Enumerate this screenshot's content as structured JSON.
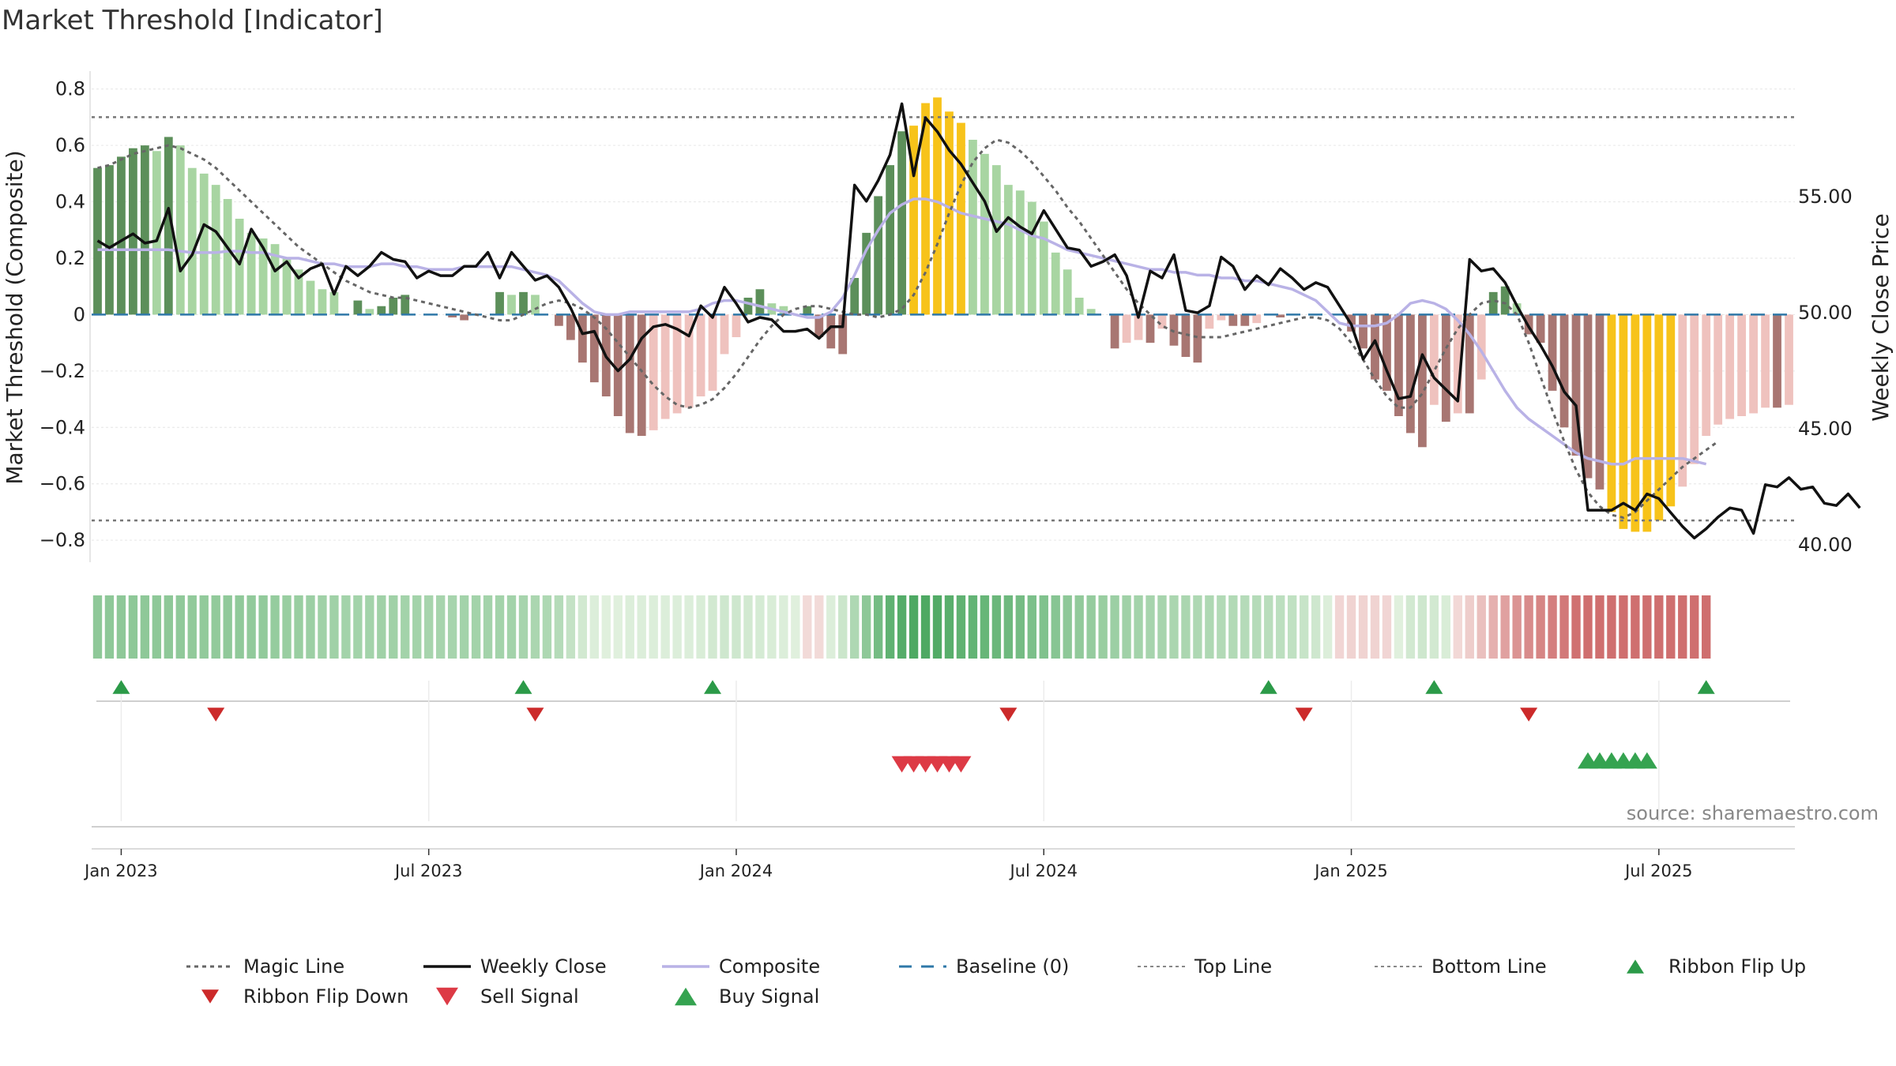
{
  "title": "Market Threshold [Indicator]",
  "source": "source: sharemaestro.com",
  "chart_data": {
    "type": "bar",
    "title": "Market Threshold [Indicator]",
    "ylabel_left": "Market Threshold (Composite)",
    "ylabel_right": "Weekly Close Price",
    "ylim_left": [
      -0.85,
      0.83
    ],
    "ylim_right": [
      39.6,
      60.0
    ],
    "y_ticks_left": [
      0.8,
      0.6,
      0.4,
      0.2,
      0,
      -0.2,
      -0.4,
      -0.6,
      -0.8
    ],
    "y_tick_labels_left": [
      "0.8",
      "0.6",
      "0.4",
      "0.2",
      "0",
      "−0.2",
      "−0.4",
      "−0.6",
      "−0.8"
    ],
    "y_ticks_right": [
      55,
      50,
      45,
      40
    ],
    "y_tick_labels_right": [
      "55.00",
      "50.00",
      "45.00",
      "40.00"
    ],
    "x_tick_labels": [
      "Jan 2023",
      "Jul 2023",
      "Jan 2024",
      "Jul 2024",
      "Jan 2025",
      "Jul 2025"
    ],
    "x_tick_weeks": [
      2,
      28,
      54,
      80,
      106,
      132
    ],
    "top_line": 0.7,
    "bottom_line": -0.73,
    "baseline": 0,
    "series": [
      {
        "name": "Magic Line",
        "color": "#6b6b6b",
        "style": "dotted",
        "values": [
          0.52,
          0.53,
          0.55,
          0.57,
          0.58,
          0.59,
          0.6,
          0.59,
          0.57,
          0.55,
          0.52,
          0.48,
          0.44,
          0.4,
          0.36,
          0.32,
          0.28,
          0.24,
          0.21,
          0.18,
          0.15,
          0.12,
          0.1,
          0.08,
          0.07,
          0.06,
          0.06,
          0.05,
          0.04,
          0.03,
          0.02,
          0.01,
          0.0,
          -0.01,
          -0.02,
          -0.02,
          0.0,
          0.02,
          0.04,
          0.05,
          0.04,
          0.02,
          -0.01,
          -0.05,
          -0.1,
          -0.15,
          -0.2,
          -0.25,
          -0.29,
          -0.32,
          -0.33,
          -0.32,
          -0.3,
          -0.26,
          -0.21,
          -0.15,
          -0.09,
          -0.04,
          0.0,
          0.02,
          0.03,
          0.03,
          0.02,
          0.01,
          0.0,
          0.0,
          -0.01,
          0.0,
          0.02,
          0.07,
          0.15,
          0.25,
          0.36,
          0.46,
          0.54,
          0.59,
          0.62,
          0.61,
          0.58,
          0.54,
          0.49,
          0.44,
          0.38,
          0.33,
          0.27,
          0.21,
          0.15,
          0.09,
          0.04,
          0.0,
          -0.04,
          -0.06,
          -0.07,
          -0.08,
          -0.08,
          -0.08,
          -0.07,
          -0.06,
          -0.05,
          -0.04,
          -0.03,
          -0.02,
          -0.01,
          -0.01,
          -0.02,
          -0.05,
          -0.1,
          -0.16,
          -0.23,
          -0.29,
          -0.33,
          -0.33,
          -0.28,
          -0.2,
          -0.12,
          -0.05,
          0.0,
          0.04,
          0.05,
          0.04,
          0.0,
          -0.1,
          -0.22,
          -0.34,
          -0.45,
          -0.55,
          -0.63,
          -0.68,
          -0.71,
          -0.72,
          -0.7,
          -0.66,
          -0.62,
          -0.58,
          -0.54,
          -0.51,
          -0.48,
          -0.45
        ]
      },
      {
        "name": "Weekly Close",
        "color": "#111111",
        "style": "solid",
        "values": [
          53.1,
          52.8,
          53.1,
          53.4,
          53.0,
          53.1,
          54.5,
          51.8,
          52.5,
          53.8,
          53.5,
          52.8,
          52.1,
          53.6,
          52.8,
          51.8,
          52.2,
          51.5,
          51.9,
          52.1,
          50.8,
          52.0,
          51.6,
          52.0,
          52.6,
          52.3,
          52.2,
          51.5,
          51.8,
          51.6,
          51.6,
          52.0,
          52.0,
          52.6,
          51.5,
          52.6,
          52.0,
          51.4,
          51.6,
          51.1,
          50.2,
          49.1,
          49.2,
          48.1,
          47.5,
          48.0,
          48.9,
          49.4,
          49.5,
          49.3,
          49.0,
          50.3,
          49.8,
          51.1,
          50.4,
          49.6,
          49.8,
          49.7,
          49.2,
          49.2,
          49.3,
          48.9,
          49.4,
          49.4,
          55.5,
          54.8,
          55.7,
          56.8,
          59.0,
          55.9,
          58.4,
          57.8,
          57.0,
          56.4,
          55.6,
          54.8,
          53.5,
          54.1,
          53.7,
          53.4,
          54.4,
          53.6,
          52.8,
          52.7,
          52.0,
          52.2,
          52.5,
          51.6,
          49.8,
          51.8,
          51.5,
          52.5,
          50.1,
          50.0,
          50.3,
          52.4,
          52.0,
          51.0,
          51.6,
          51.2,
          51.9,
          51.5,
          51.0,
          51.3,
          51.1,
          50.3,
          49.5,
          48.0,
          48.8,
          47.5,
          46.3,
          46.4,
          48.2,
          47.2,
          46.7,
          46.2,
          52.3,
          51.8,
          51.9,
          51.3,
          50.3,
          49.4,
          48.6,
          47.7,
          46.6,
          46.0,
          41.5,
          41.5,
          41.5,
          41.8,
          41.5,
          42.2,
          42.0,
          41.4,
          40.8,
          40.3,
          40.7,
          41.2,
          41.6,
          41.5,
          40.5,
          42.6,
          42.5,
          42.9,
          42.4,
          42.5,
          41.8,
          41.7,
          42.2,
          41.6
        ]
      },
      {
        "name": "Composite",
        "color": "#b9b2e6",
        "style": "solid",
        "values": [
          0.23,
          0.23,
          0.23,
          0.23,
          0.23,
          0.23,
          0.23,
          0.225,
          0.22,
          0.22,
          0.22,
          0.225,
          0.225,
          0.22,
          0.22,
          0.21,
          0.2,
          0.2,
          0.19,
          0.18,
          0.18,
          0.17,
          0.17,
          0.17,
          0.18,
          0.18,
          0.17,
          0.17,
          0.16,
          0.16,
          0.16,
          0.17,
          0.17,
          0.17,
          0.17,
          0.17,
          0.16,
          0.15,
          0.14,
          0.12,
          0.08,
          0.04,
          0.01,
          0.0,
          0.0,
          0.01,
          0.01,
          0.01,
          0.01,
          0.01,
          0.01,
          0.02,
          0.04,
          0.05,
          0.05,
          0.04,
          0.03,
          0.02,
          0.01,
          0.0,
          -0.01,
          -0.01,
          0.01,
          0.06,
          0.14,
          0.23,
          0.3,
          0.36,
          0.39,
          0.41,
          0.41,
          0.4,
          0.38,
          0.36,
          0.35,
          0.34,
          0.33,
          0.32,
          0.3,
          0.28,
          0.27,
          0.25,
          0.23,
          0.22,
          0.21,
          0.2,
          0.19,
          0.18,
          0.17,
          0.16,
          0.16,
          0.15,
          0.15,
          0.14,
          0.14,
          0.13,
          0.13,
          0.12,
          0.12,
          0.11,
          0.1,
          0.09,
          0.07,
          0.05,
          0.01,
          -0.03,
          -0.04,
          -0.04,
          -0.04,
          -0.03,
          0.0,
          0.04,
          0.05,
          0.04,
          0.02,
          -0.02,
          -0.07,
          -0.13,
          -0.2,
          -0.27,
          -0.33,
          -0.37,
          -0.4,
          -0.43,
          -0.46,
          -0.49,
          -0.51,
          -0.52,
          -0.53,
          -0.53,
          -0.51,
          -0.51,
          -0.51,
          -0.51,
          -0.51,
          -0.52,
          -0.53
        ]
      },
      {
        "name": "Composite Histogram",
        "type": "bar",
        "values": [
          0.52,
          0.53,
          0.56,
          0.59,
          0.6,
          0.58,
          0.63,
          0.6,
          0.52,
          0.5,
          0.46,
          0.41,
          0.34,
          0.29,
          0.27,
          0.25,
          0.2,
          0.16,
          0.12,
          0.09,
          0.08,
          0.0,
          0.05,
          0.02,
          0.03,
          0.06,
          0.07,
          0.0,
          0.0,
          0.0,
          -0.01,
          -0.02,
          0.0,
          0.0,
          0.08,
          0.07,
          0.08,
          0.07,
          0.0,
          -0.04,
          -0.09,
          -0.17,
          -0.24,
          -0.29,
          -0.36,
          -0.42,
          -0.43,
          -0.41,
          -0.37,
          -0.35,
          -0.33,
          -0.29,
          -0.27,
          -0.14,
          -0.08,
          0.06,
          0.09,
          0.04,
          0.03,
          0.0,
          0.03,
          -0.08,
          -0.12,
          -0.14,
          0.13,
          0.29,
          0.42,
          0.53,
          0.65,
          0.67,
          0.75,
          0.77,
          0.72,
          0.68,
          0.62,
          0.57,
          0.53,
          0.46,
          0.44,
          0.4,
          0.33,
          0.22,
          0.16,
          0.06,
          0.02,
          0.0,
          -0.12,
          -0.1,
          -0.09,
          -0.1,
          -0.05,
          -0.11,
          -0.15,
          -0.17,
          -0.05,
          -0.02,
          -0.04,
          -0.04,
          -0.03,
          0.0,
          -0.01,
          0.0,
          0.0,
          0.0,
          0.0,
          0.0,
          -0.06,
          -0.12,
          -0.23,
          -0.27,
          -0.36,
          -0.42,
          -0.47,
          -0.32,
          -0.38,
          -0.35,
          -0.35,
          -0.23,
          0.08,
          0.1,
          0.04,
          -0.07,
          -0.1,
          -0.27,
          -0.4,
          -0.5,
          -0.58,
          -0.62,
          -0.7,
          -0.76,
          -0.77,
          -0.77,
          -0.73,
          -0.68,
          -0.61,
          -0.53,
          -0.43,
          -0.39,
          -0.37,
          -0.36,
          -0.35,
          -0.33,
          -0.33,
          -0.32
        ]
      },
      {
        "name": "Baseline (0)",
        "color": "#2f78a8",
        "style": "dashed"
      },
      {
        "name": "Top Line",
        "color": "#777777",
        "style": "dotted"
      },
      {
        "name": "Bottom Line",
        "color": "#777777",
        "style": "dotted"
      }
    ],
    "ribbon_flip_up_weeks": [
      2,
      36,
      52,
      99,
      113,
      136
    ],
    "ribbon_flip_down_weeks": [
      10,
      37,
      77,
      102,
      121
    ],
    "sell_signal_weeks": [
      68,
      69,
      70,
      71,
      72,
      73
    ],
    "buy_signal_weeks": [
      126,
      127,
      128,
      129,
      130,
      131
    ],
    "legend": [
      "Magic Line",
      "Weekly Close",
      "Composite",
      "Baseline (0)",
      "Top Line",
      "Bottom Line",
      "Ribbon Flip Up",
      "Ribbon Flip Down",
      "Sell Signal",
      "Buy Signal"
    ]
  },
  "colors": {
    "bar_light_green": "#a8d5a2",
    "bar_dark_green": "#5c8f5a",
    "bar_light_red": "#efc2be",
    "bar_dark_red": "#a87672",
    "bar_extreme": "#f7c31a",
    "flip_up": "#2b9a48",
    "flip_down": "#cc2a2a",
    "sell": "#dd3a45",
    "buy": "#35a350"
  }
}
